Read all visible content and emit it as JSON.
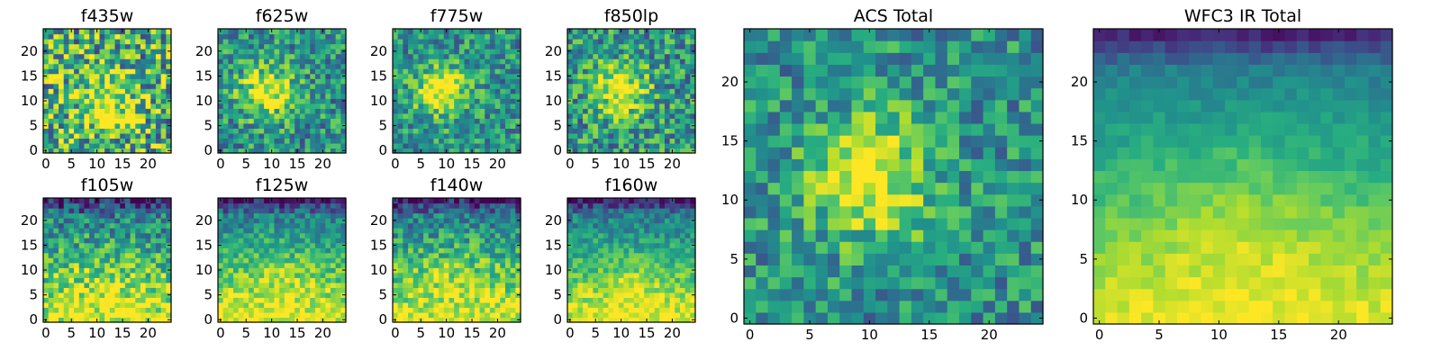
{
  "figure": {
    "colormap": "viridis",
    "colormap_stops": [
      "#440154",
      "#472c7a",
      "#3b528b",
      "#2c728e",
      "#21918c",
      "#28ae80",
      "#5ec962",
      "#addc30",
      "#fde725"
    ]
  },
  "chart_data": [
    {
      "type": "heatmap",
      "title": "f435w",
      "grid_size": 25,
      "xlim": [
        0,
        24
      ],
      "ylim": [
        0,
        24
      ],
      "xticks": [
        0,
        5,
        10,
        15,
        20
      ],
      "yticks": [
        0,
        5,
        10,
        15,
        20
      ],
      "peak": [
        12,
        10
      ],
      "background_level": 0.62,
      "noise": 0.42,
      "gradient": "none"
    },
    {
      "type": "heatmap",
      "title": "f625w",
      "grid_size": 25,
      "xlim": [
        0,
        24
      ],
      "ylim": [
        0,
        24
      ],
      "xticks": [
        0,
        5,
        10,
        15,
        20
      ],
      "yticks": [
        0,
        5,
        10,
        15,
        20
      ],
      "peak": [
        9,
        12
      ],
      "background_level": 0.5,
      "noise": 0.28,
      "gradient": "none"
    },
    {
      "type": "heatmap",
      "title": "f775w",
      "grid_size": 25,
      "xlim": [
        0,
        24
      ],
      "ylim": [
        0,
        24
      ],
      "xticks": [
        0,
        5,
        10,
        15,
        20
      ],
      "yticks": [
        0,
        5,
        10,
        15,
        20
      ],
      "peak": [
        9,
        12
      ],
      "background_level": 0.5,
      "noise": 0.26,
      "gradient": "none"
    },
    {
      "type": "heatmap",
      "title": "f850lp",
      "grid_size": 25,
      "xlim": [
        0,
        24
      ],
      "ylim": [
        0,
        24
      ],
      "xticks": [
        0,
        5,
        10,
        15,
        20
      ],
      "yticks": [
        0,
        5,
        10,
        15,
        20
      ],
      "peak": [
        10,
        12
      ],
      "background_level": 0.52,
      "noise": 0.3,
      "gradient": "none"
    },
    {
      "type": "heatmap",
      "title": "f105w",
      "grid_size": 25,
      "xlim": [
        0,
        24
      ],
      "ylim": [
        0,
        24
      ],
      "xticks": [
        0,
        5,
        10,
        15,
        20
      ],
      "yticks": [
        0,
        5,
        10,
        15,
        20
      ],
      "peak": [
        12,
        8
      ],
      "background_level": 0.55,
      "noise": 0.26,
      "gradient": "bottom"
    },
    {
      "type": "heatmap",
      "title": "f125w",
      "grid_size": 25,
      "xlim": [
        0,
        24
      ],
      "ylim": [
        0,
        24
      ],
      "xticks": [
        0,
        5,
        10,
        15,
        20
      ],
      "yticks": [
        0,
        5,
        10,
        15,
        20
      ],
      "peak": [
        12,
        8
      ],
      "background_level": 0.45,
      "noise": 0.18,
      "gradient": "bottom"
    },
    {
      "type": "heatmap",
      "title": "f140w",
      "grid_size": 25,
      "xlim": [
        0,
        24
      ],
      "ylim": [
        0,
        24
      ],
      "xticks": [
        0,
        5,
        10,
        15,
        20
      ],
      "yticks": [
        0,
        5,
        10,
        15,
        20
      ],
      "peak": [
        12,
        8
      ],
      "background_level": 0.42,
      "noise": 0.22,
      "gradient": "bottom"
    },
    {
      "type": "heatmap",
      "title": "f160w",
      "grid_size": 25,
      "xlim": [
        0,
        24
      ],
      "ylim": [
        0,
        24
      ],
      "xticks": [
        0,
        5,
        10,
        15,
        20
      ],
      "yticks": [
        0,
        5,
        10,
        15,
        20
      ],
      "peak": [
        12,
        6
      ],
      "background_level": 0.38,
      "noise": 0.16,
      "gradient": "bottom"
    },
    {
      "type": "heatmap",
      "title": "ACS Total",
      "grid_size": 25,
      "xlim": [
        0,
        24
      ],
      "ylim": [
        0,
        24
      ],
      "xticks": [
        0,
        5,
        10,
        15,
        20
      ],
      "yticks": [
        0,
        5,
        10,
        15,
        20
      ],
      "peak": [
        10,
        12
      ],
      "background_level": 0.5,
      "noise": 0.24,
      "gradient": "none"
    },
    {
      "type": "heatmap",
      "title": "WFC3 IR Total",
      "grid_size": 25,
      "xlim": [
        0,
        24
      ],
      "ylim": [
        0,
        24
      ],
      "xticks": [
        0,
        5,
        10,
        15,
        20
      ],
      "yticks": [
        0,
        5,
        10,
        15,
        20
      ],
      "peak": [
        12,
        8
      ],
      "background_level": 0.45,
      "noise": 0.07,
      "gradient": "bottom"
    }
  ]
}
